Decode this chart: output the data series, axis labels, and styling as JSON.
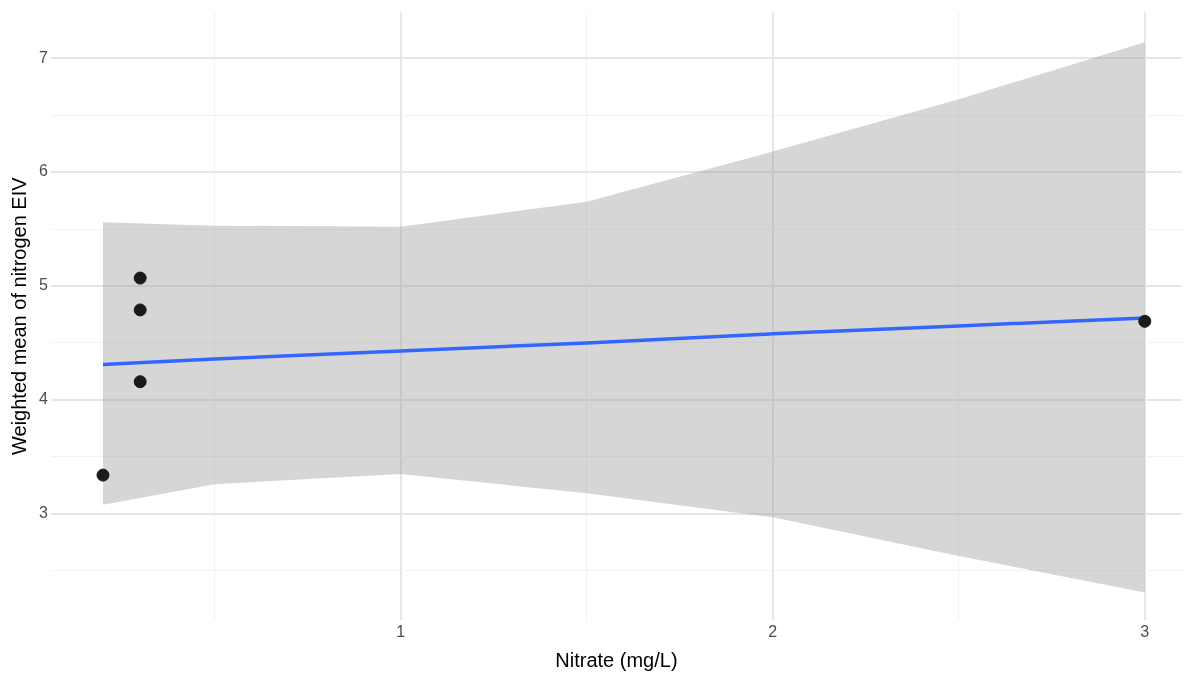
{
  "chart_data": {
    "type": "scatter",
    "xlabel": "Nitrate (mg/L)",
    "ylabel": "Weighted mean of nitrogen EIV",
    "xlim": [
      0.06,
      3.1
    ],
    "ylim": [
      2.07,
      7.4
    ],
    "xticks": [
      {
        "value": 0.5,
        "label": null
      },
      1,
      {
        "value": 1.5,
        "label": null
      },
      2,
      {
        "value": 2.5,
        "label": null
      },
      3
    ],
    "yticks": [
      {
        "value": 2.5,
        "label": null
      },
      3,
      {
        "value": 3.5,
        "label": null
      },
      4,
      {
        "value": 4.5,
        "label": null
      },
      5,
      {
        "value": 5.5,
        "label": null
      },
      6,
      {
        "value": 6.5,
        "label": null
      },
      7
    ],
    "grid": true,
    "legend": false,
    "marker": "circle",
    "series": [
      {
        "type": "line",
        "color": "#3366ff",
        "x": [
          0.2,
          0.5,
          1,
          1.5,
          2,
          2.5,
          3
        ],
        "values": [
          4.31,
          4.36,
          4.43,
          4.5,
          4.58,
          4.65,
          4.72
        ],
        "lower": [
          3.08,
          3.26,
          3.35,
          3.18,
          2.97,
          2.63,
          2.31
        ],
        "upper": [
          5.56,
          5.53,
          5.52,
          5.74,
          6.18,
          6.64,
          7.14
        ],
        "line_style": "solid",
        "marker": "none"
      },
      {
        "type": "scatter",
        "color": "#1a1a1a",
        "x": [
          0.2,
          0.3,
          0.3,
          0.3,
          3
        ],
        "values": [
          3.34,
          5.07,
          4.79,
          4.16,
          4.69
        ]
      }
    ]
  }
}
